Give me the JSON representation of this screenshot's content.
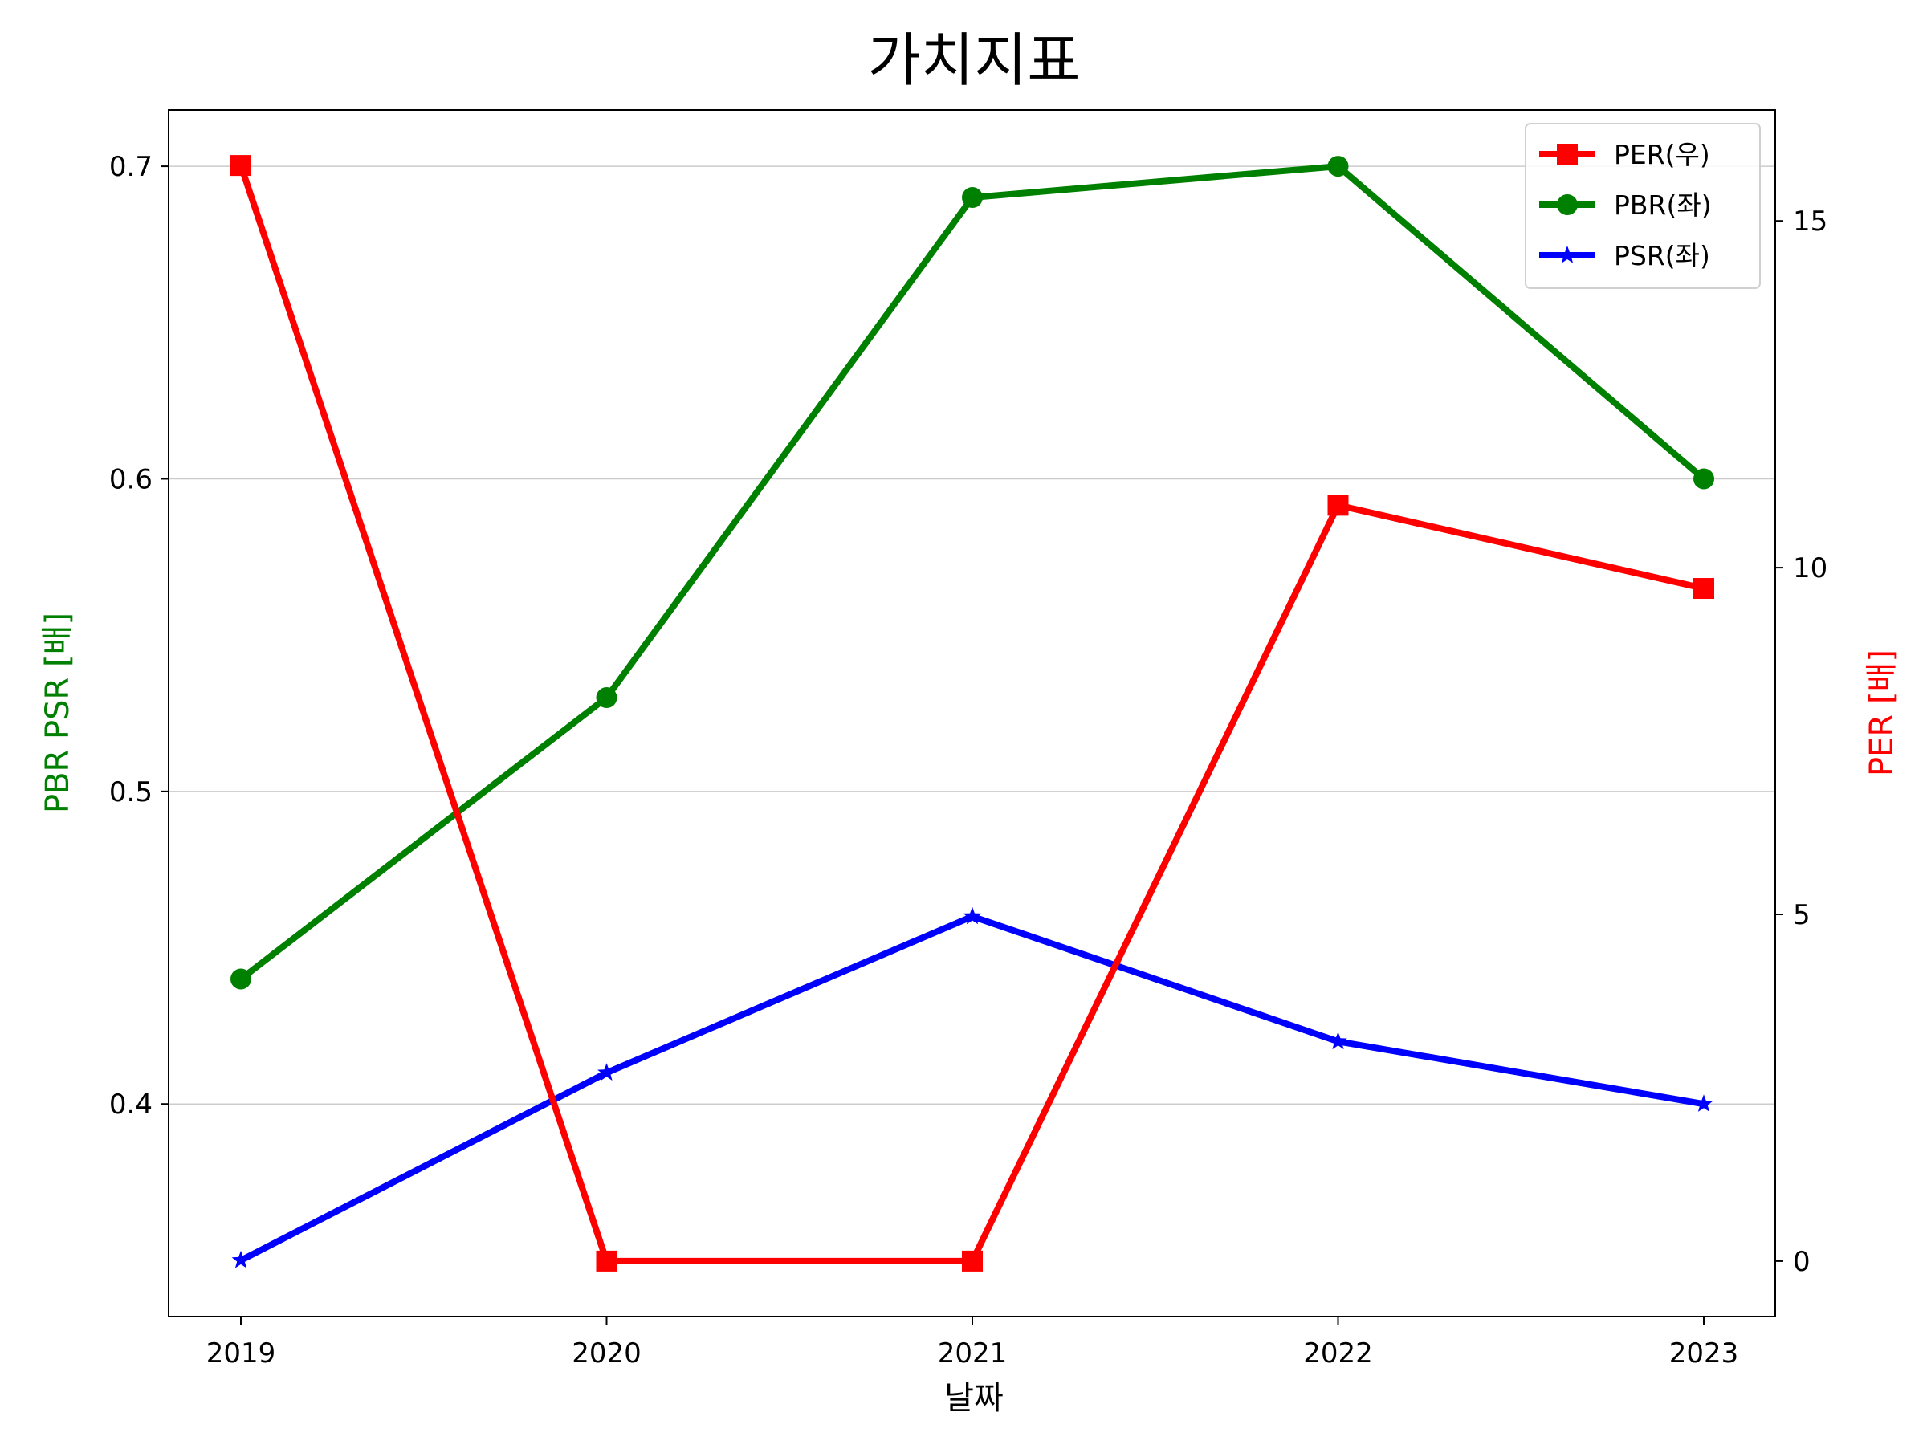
{
  "chart_data": {
    "type": "line",
    "title": "가치지표",
    "xlabel": "날짜",
    "ylabel_left": "PBR PSR [배]",
    "ylabel_right": "PER [배]",
    "categories": [
      "2019",
      "2020",
      "2021",
      "2022",
      "2023"
    ],
    "left_axis": {
      "ylim": [
        0.332,
        0.718
      ],
      "ticks": [
        0.4,
        0.5,
        0.6,
        0.7
      ],
      "tick_labels": [
        "0.4",
        "0.5",
        "0.6",
        "0.7"
      ]
    },
    "right_axis": {
      "ylim": [
        -0.8,
        16.6
      ],
      "ticks": [
        0,
        5,
        10,
        15
      ],
      "tick_labels": [
        "0",
        "5",
        "10",
        "15"
      ]
    },
    "grid": "horizontal, left axis",
    "legend_position": "top-right",
    "series": [
      {
        "name": "PER(우)",
        "axis": "right",
        "color": "#ff0000",
        "marker": "square",
        "values": [
          15.8,
          0.0,
          0.0,
          10.9,
          9.7
        ]
      },
      {
        "name": "PBR(좌)",
        "axis": "left",
        "color": "#008000",
        "marker": "circle",
        "values": [
          0.44,
          0.53,
          0.69,
          0.7,
          0.6
        ]
      },
      {
        "name": "PSR(좌)",
        "axis": "left",
        "color": "#0000ff",
        "marker": "star",
        "values": [
          0.35,
          0.41,
          0.46,
          0.42,
          0.4
        ]
      }
    ]
  }
}
